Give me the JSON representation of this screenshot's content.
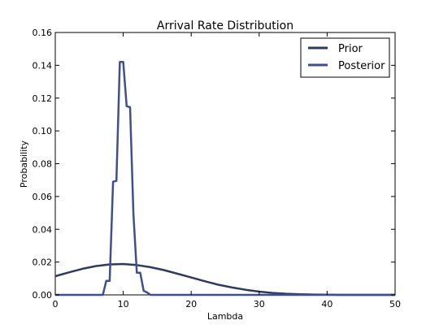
{
  "chart_data": {
    "type": "line",
    "title": "Arrival Rate Distribution",
    "xlabel": "Lambda",
    "ylabel": "Probability",
    "xlim": [
      0,
      50
    ],
    "ylim": [
      0,
      0.16
    ],
    "xticks": [
      "0",
      "10",
      "20",
      "30",
      "40",
      "50"
    ],
    "yticks": [
      "0.00",
      "0.02",
      "0.04",
      "0.06",
      "0.08",
      "0.10",
      "0.12",
      "0.14",
      "0.16"
    ],
    "grid": false,
    "legend_position": "top-right",
    "series": [
      {
        "name": "Prior",
        "color": "#2f3a5c",
        "x": [
          0,
          2,
          4,
          6,
          8,
          10,
          12,
          14,
          16,
          18,
          20,
          22,
          24,
          26,
          28,
          30,
          32,
          34,
          36,
          38,
          40,
          42,
          44,
          46,
          48,
          50
        ],
        "y": [
          0.0114,
          0.0137,
          0.0159,
          0.0176,
          0.0186,
          0.0188,
          0.0182,
          0.0169,
          0.0151,
          0.0129,
          0.0106,
          0.0083,
          0.0062,
          0.0045,
          0.0031,
          0.002,
          0.0012,
          0.0007,
          0.0004,
          0.0002,
          0.0001,
          0.0,
          0.0,
          0.0,
          0.0,
          0.0
        ]
      },
      {
        "name": "Posterior",
        "color": "#3f4f8f",
        "x": [
          0,
          6.5,
          7,
          7.5,
          8,
          8.5,
          9,
          9.5,
          10,
          10.5,
          11,
          11.5,
          12,
          12.5,
          13,
          13.5,
          14,
          15,
          50
        ],
        "y": [
          0.0,
          0.0,
          0.0,
          0.0085,
          0.0085,
          0.069,
          0.0695,
          0.142,
          0.142,
          0.115,
          0.1145,
          0.0495,
          0.0135,
          0.0135,
          0.0025,
          0.0015,
          0.0,
          0.0,
          0.0
        ]
      }
    ]
  }
}
